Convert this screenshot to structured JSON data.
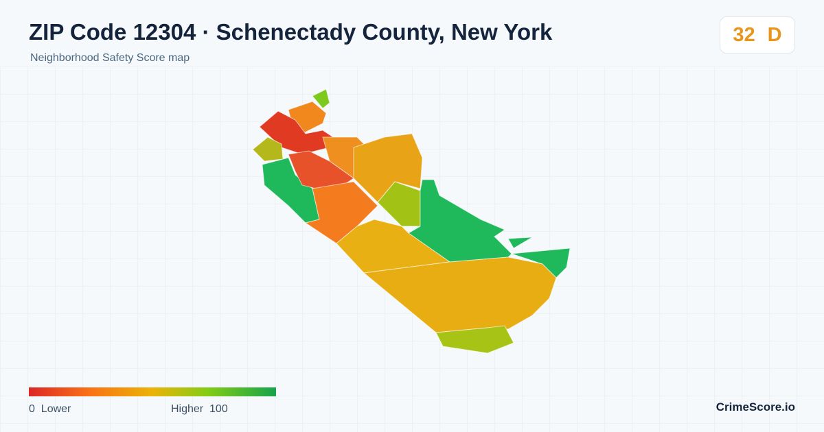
{
  "header": {
    "title": "ZIP Code 12304 · Schenectady County, New York",
    "subtitle": "Neighborhood Safety Score map"
  },
  "score": {
    "value": 32,
    "grade": "D"
  },
  "legend": {
    "min": 0,
    "min_label": "Lower",
    "max_label": "Higher",
    "max": 100
  },
  "footer": {
    "brand": "CrimeScore.io"
  }
}
